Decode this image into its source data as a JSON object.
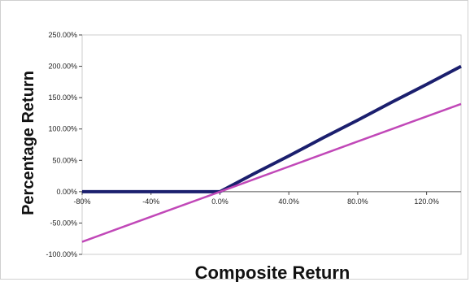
{
  "chart_data": {
    "type": "line",
    "title": "",
    "xlabel": "Composite Return",
    "ylabel": "Percentage Return",
    "xlim": [
      -80,
      140
    ],
    "ylim": [
      -100,
      250
    ],
    "x_tick_values": [
      -80,
      -40,
      0,
      40,
      80,
      120
    ],
    "x_tick_labels": [
      "-80%",
      "-40%",
      "0.0%",
      "40.0%",
      "80.0%",
      "120.0%"
    ],
    "y_tick_values": [
      250,
      200,
      150,
      100,
      50,
      0,
      -50,
      -100
    ],
    "y_tick_labels": [
      "250.00%",
      "200.00%",
      "150.00%",
      "100.00%",
      "50.00%",
      "0.00%",
      "-50.00%",
      "-100.00%"
    ],
    "grid": false,
    "legend": "none",
    "series": [
      {
        "color": "#1b1f6e",
        "x": [
          -80,
          -60,
          -40,
          -20,
          0,
          20,
          40,
          60,
          80,
          100,
          120,
          140
        ],
        "y": [
          0,
          0,
          0,
          0,
          0,
          29,
          57,
          86,
          114,
          143,
          171,
          200
        ]
      },
      {
        "color": "#c148b8",
        "x": [
          -80,
          -60,
          -40,
          -20,
          0,
          20,
          40,
          60,
          80,
          100,
          120,
          140
        ],
        "y": [
          -80,
          -60,
          -40,
          -20,
          0,
          20,
          40,
          60,
          80,
          100,
          120,
          140
        ]
      }
    ]
  }
}
